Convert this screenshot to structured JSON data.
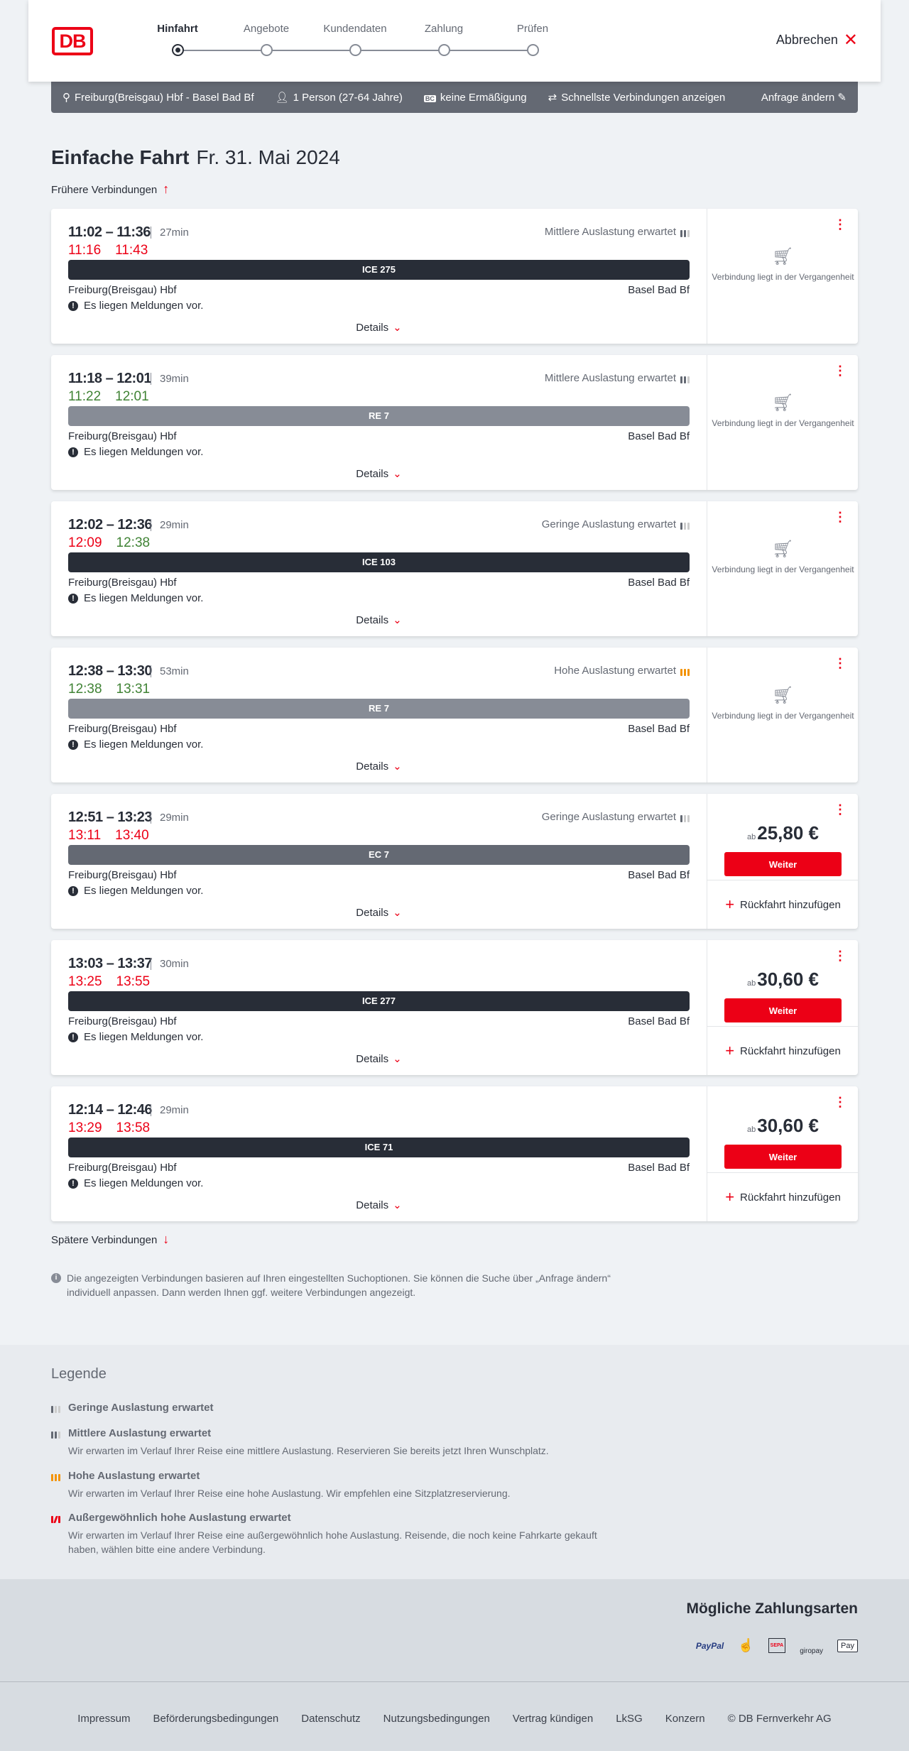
{
  "header": {
    "logo": "DB",
    "steps": [
      "Hinfahrt",
      "Angebote",
      "Kundendaten",
      "Zahlung",
      "Prüfen"
    ],
    "active_step": 0,
    "cancel": "Abbrechen"
  },
  "summary": {
    "route": "Freiburg(Breisgau) Hbf - Basel Bad Bf",
    "passengers": "1 Person (27-64 Jahre)",
    "discount_badge": "BC",
    "discount": "keine Ermäßigung",
    "option": "Schnellste Verbindungen anzeigen",
    "edit": "Anfrage ändern"
  },
  "title": {
    "bold": "Einfache Fahrt",
    "date": "Fr. 31. Mai 2024"
  },
  "earlier": "Frühere Verbindungen",
  "later": "Spätere Verbindungen",
  "common": {
    "from": "Freiburg(Breisgau) Hbf",
    "to": "Basel Bad Bf",
    "message": "Es liegen Meldungen vor.",
    "details": "Details",
    "past": "Verbindung liegt in der Vergangenheit",
    "weiter": "Weiter",
    "return": "Rückfahrt hinzufügen",
    "ab": "ab"
  },
  "colors": {
    "accent": "#ec0016",
    "ice": "#282d37",
    "re": "#878c96",
    "ec": "#646973",
    "delay": "#ec0016",
    "ontime": "#408335",
    "high": "#f39200"
  },
  "connections": [
    {
      "times": "11:02 – 11:36",
      "duration": "27min",
      "rt_dep": "11:16",
      "rt_arr": "11:43",
      "dep_status": "red",
      "arr_status": "red",
      "load": "Mittlere Auslastung erwartet",
      "load_level": 2,
      "train": "ICE 275",
      "train_type": "ice",
      "price": null
    },
    {
      "times": "11:18 – 12:01",
      "duration": "39min",
      "rt_dep": "11:22",
      "rt_arr": "12:01",
      "dep_status": "green",
      "arr_status": "green",
      "load": "Mittlere Auslastung erwartet",
      "load_level": 2,
      "train": "RE 7",
      "train_type": "re",
      "price": null
    },
    {
      "times": "12:02 – 12:36",
      "duration": "29min",
      "rt_dep": "12:09",
      "rt_arr": "12:38",
      "dep_status": "red",
      "arr_status": "green",
      "load": "Geringe Auslastung erwartet",
      "load_level": 1,
      "train": "ICE 103",
      "train_type": "ice",
      "price": null
    },
    {
      "times": "12:38 – 13:30",
      "duration": "53min",
      "rt_dep": "12:38",
      "rt_arr": "13:31",
      "dep_status": "green",
      "arr_status": "green",
      "load": "Hohe Auslastung erwartet",
      "load_level": 3,
      "train": "RE 7",
      "train_type": "re",
      "price": null
    },
    {
      "times": "12:51 – 13:23",
      "duration": "29min",
      "rt_dep": "13:11",
      "rt_arr": "13:40",
      "dep_status": "red",
      "arr_status": "red",
      "load": "Geringe Auslastung erwartet",
      "load_level": 1,
      "train": "EC 7",
      "train_type": "ec",
      "price": "25,80 €"
    },
    {
      "times": "13:03 – 13:37",
      "duration": "30min",
      "rt_dep": "13:25",
      "rt_arr": "13:55",
      "dep_status": "red",
      "arr_status": "red",
      "load": "",
      "load_level": 0,
      "train": "ICE 277",
      "train_type": "ice",
      "price": "30,60 €"
    },
    {
      "times": "12:14 – 12:46",
      "duration": "29min",
      "rt_dep": "13:29",
      "rt_arr": "13:58",
      "dep_status": "red",
      "arr_status": "red",
      "load": "",
      "load_level": 0,
      "train": "ICE 71",
      "train_type": "ice",
      "price": "30,60 €"
    }
  ],
  "info": "Die angezeigten Verbindungen basieren auf Ihren eingestellten Suchoptionen. Sie können die Suche über „Anfrage ändern“ individuell anpassen. Dann werden Ihnen ggf. weitere Verbindungen angezeigt.",
  "legend": {
    "title": "Legende",
    "items": [
      {
        "title": "Geringe Auslastung erwartet",
        "text": ""
      },
      {
        "title": "Mittlere Auslastung erwartet",
        "text": "Wir erwarten im Verlauf Ihrer Reise eine mittlere Auslastung. Reservieren Sie bereits jetzt Ihren Wunschplatz."
      },
      {
        "title": "Hohe Auslastung erwartet",
        "text": "Wir erwarten im Verlauf Ihrer Reise eine hohe Auslastung. Wir empfehlen eine Sitzplatzreservierung."
      },
      {
        "title": "Außergewöhnlich hohe Auslastung erwartet",
        "text": "Wir erwarten im Verlauf Ihrer Reise eine außergewöhnlich hohe Auslastung. Reisende, die noch keine Fahrkarte gekauft haben, wählen bitte eine andere Verbindung."
      }
    ]
  },
  "footer": {
    "payment_title": "Mögliche Zahlungsarten",
    "payments": [
      "PayPal",
      "SEPA",
      "giropay",
      "Pay"
    ],
    "links": [
      "Impressum",
      "Beförderungsbedingungen",
      "Datenschutz",
      "Nutzungsbedingungen",
      "Vertrag kündigen",
      "LkSG",
      "Konzern",
      "© DB Fernverkehr AG"
    ]
  }
}
